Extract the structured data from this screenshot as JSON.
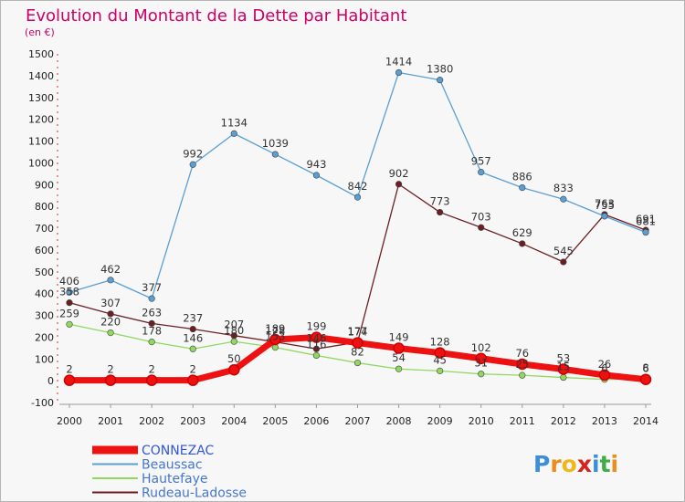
{
  "chart_data": {
    "type": "line",
    "title": "Evolution du Montant de la Dette par Habitant",
    "subtitle": "(en €)",
    "x": [
      "2000",
      "2001",
      "2002",
      "2003",
      "2004",
      "2005",
      "2006",
      "2007",
      "2008",
      "2009",
      "2010",
      "2011",
      "2012",
      "2013",
      "2014"
    ],
    "yticks": [
      -100,
      0,
      100,
      200,
      300,
      400,
      500,
      600,
      700,
      800,
      900,
      1000,
      1100,
      1200,
      1300,
      1400,
      1500
    ],
    "ylim": [
      -100,
      1500
    ],
    "grid": false,
    "legend_position": "bottom-left",
    "series": [
      {
        "name": "CONNEZAC",
        "color": "#ee1111",
        "values": [
          2,
          2,
          2,
          2,
          50,
          189,
          199,
          174,
          149,
          128,
          102,
          76,
          53,
          26,
          6
        ]
      },
      {
        "name": "Beaussac",
        "color": "#5a9fd4",
        "values": [
          406,
          462,
          377,
          992,
          1134,
          1039,
          943,
          842,
          1414,
          1380,
          957,
          886,
          833,
          755,
          681
        ]
      },
      {
        "name": "Hautefaye",
        "color": "#90d860",
        "values": [
          259,
          220,
          178,
          146,
          180,
          153,
          116,
          82,
          54,
          45,
          31,
          25,
          15,
          6,
          8
        ]
      },
      {
        "name": "Rudeau-Ladosse",
        "color": "#6b1f22",
        "values": [
          358,
          307,
          263,
          237,
          207,
          178,
          146,
          177,
          902,
          773,
          703,
          629,
          545,
          763,
          691
        ]
      }
    ]
  },
  "logo": {
    "letters": [
      "P",
      "r",
      "o",
      "x",
      "i",
      "t",
      "i"
    ],
    "colors": [
      "#3a8fd8",
      "#f08a1c",
      "#f0b71c",
      "#d8231c",
      "#3a8fd8",
      "#3fae49",
      "#f08a1c"
    ]
  }
}
